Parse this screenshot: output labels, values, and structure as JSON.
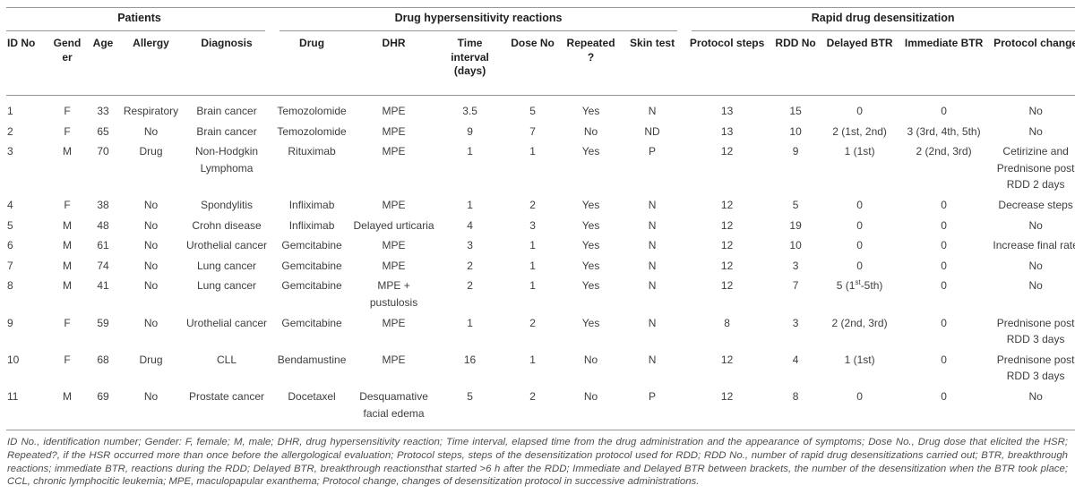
{
  "table": {
    "groups": [
      {
        "label": "Patients",
        "span": 5
      },
      {
        "label": "Drug hypersensitivity reactions",
        "span": 6
      },
      {
        "label": "Rapid drug desensitization",
        "span": 5
      }
    ],
    "columns": [
      "ID No",
      "Gender",
      "Age",
      "Allergy",
      "Diagnosis",
      "Drug",
      "DHR",
      "Time interval (days)",
      "Dose No",
      "Repeated?",
      "Skin test",
      "Protocol steps",
      "RDD No",
      "Delayed BTR",
      "Immediate BTR",
      "Protocol change"
    ],
    "rows": [
      [
        "1",
        "F",
        "33",
        "Respiratory",
        "Brain cancer",
        "Temozolomide",
        "MPE",
        "3.5",
        "5",
        "Yes",
        "N",
        "13",
        "15",
        "0",
        "0",
        "No"
      ],
      [
        "2",
        "F",
        "65",
        "No",
        "Brain cancer",
        "Temozolomide",
        "MPE",
        "9",
        "7",
        "No",
        "ND",
        "13",
        "10",
        "2 (1st, 2nd)",
        "3 (3rd, 4th, 5th)",
        "No"
      ],
      [
        "3",
        "M",
        "70",
        "Drug",
        "Non-Hodgkin Lymphoma",
        "Rituximab",
        "MPE",
        "1",
        "1",
        "Yes",
        "P",
        "12",
        "9",
        "1 (1st)",
        "2 (2nd, 3rd)",
        "Cetirizine and Prednisone post RDD 2 days"
      ],
      [
        "4",
        "F",
        "38",
        "No",
        "Spondylitis",
        "Infliximab",
        "MPE",
        "1",
        "2",
        "Yes",
        "N",
        "12",
        "5",
        "0",
        "0",
        "Decrease steps"
      ],
      [
        "5",
        "M",
        "48",
        "No",
        "Crohn disease",
        "Infliximab",
        "Delayed urticaria",
        "4",
        "3",
        "Yes",
        "N",
        "12",
        "19",
        "0",
        "0",
        "No"
      ],
      [
        "6",
        "M",
        "61",
        "No",
        "Urothelial cancer",
        "Gemcitabine",
        "MPE",
        "3",
        "1",
        "Yes",
        "N",
        "12",
        "10",
        "0",
        "0",
        "Increase final rate"
      ],
      [
        "7",
        "M",
        "74",
        "No",
        "Lung cancer",
        "Gemcitabine",
        "MPE",
        "2",
        "1",
        "Yes",
        "N",
        "12",
        "3",
        "0",
        "0",
        "No"
      ],
      [
        "8",
        "M",
        "41",
        "No",
        "Lung cancer",
        "Gemcitabine",
        "MPE + pustulosis",
        "2",
        "1",
        "Yes",
        "N",
        "12",
        "7",
        "5 (1^st^-5th)",
        "0",
        "No"
      ],
      [
        "9",
        "F",
        "59",
        "No",
        "Urothelial cancer",
        "Gemcitabine",
        "MPE",
        "1",
        "2",
        "Yes",
        "N",
        "8",
        "3",
        "2 (2nd, 3rd)",
        "0",
        "Prednisone post RDD 3 days"
      ],
      [
        "10",
        "F",
        "68",
        "Drug",
        "CLL",
        "Bendamustine",
        "MPE",
        "16",
        "1",
        "No",
        "N",
        "12",
        "4",
        "1 (1st)",
        "0",
        "Prednisone post RDD 3 days"
      ],
      [
        "11",
        "M",
        "69",
        "No",
        "Prostate cancer",
        "Docetaxel",
        "Desquamative facial edema",
        "5",
        "2",
        "No",
        "P",
        "12",
        "8",
        "0",
        "0",
        "No"
      ]
    ],
    "footnote": "ID No., identification number; Gender: F, female; M, male; DHR, drug hypersensitivity reaction; Time interval, elapsed time from the drug administration and the appearance of symptoms; Dose No., Drug dose that elicited the HSR; Repeated?, if the HSR occurred more than once before the allergological evaluation; Protocol steps, steps of the desensitization protocol used for RDD; RDD No., number of rapid drug desensitizations carried out; BTR, breakthrough reactions; immediate BTR, reactions during the RDD; Delayed BTR, breakthrough reactionsthat started >6 h after the RDD; Immediate and Delayed BTR between brackets, the number of the desensitization when the BTR took place; CCL, chronic lymphocitic leukemia; MPE, maculopapular exanthema; Protocol change, changes of desensitization protocol in successive administrations."
  },
  "colors": {
    "rule": "#969696",
    "header_text": "#1f1f1f",
    "body_text": "#3e3e3e",
    "footnote_text": "#4e4e4e"
  }
}
